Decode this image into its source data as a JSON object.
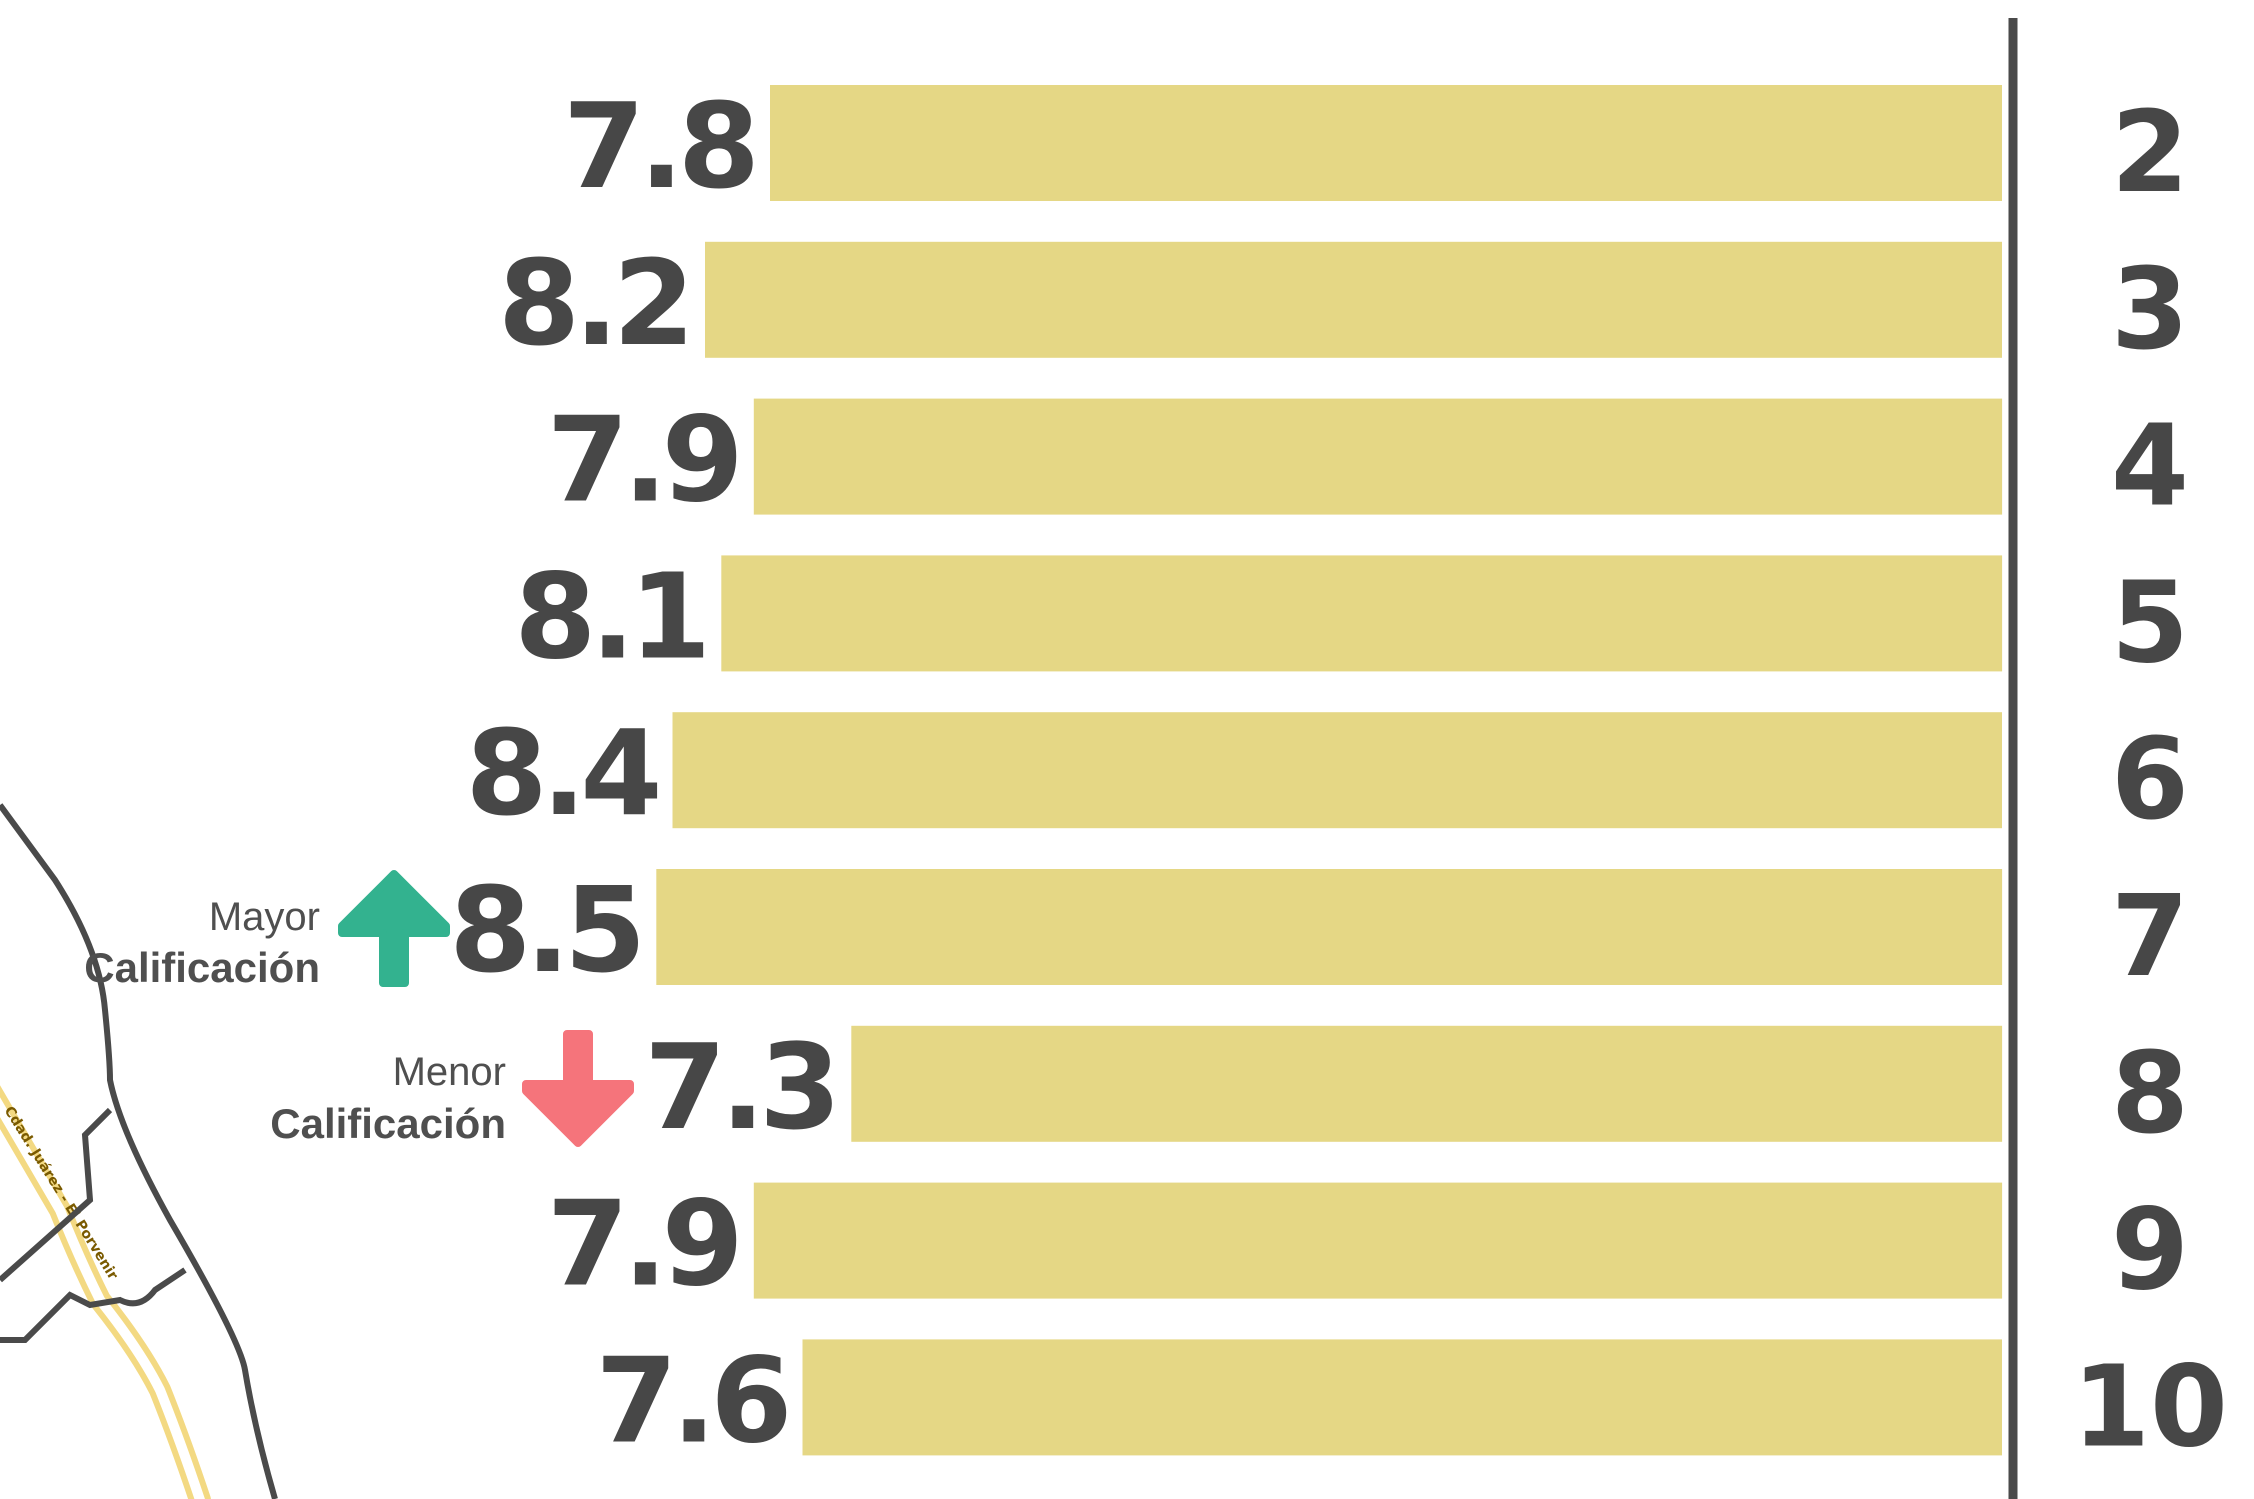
{
  "colors": {
    "bar": "#e5d785",
    "text": "#474747",
    "axis": "#4a4a4a",
    "up_arrow": "#33b28f",
    "down_arrow": "#f5747b",
    "map_line": "#4a4a4a",
    "road": "#f3d982"
  },
  "map": {
    "road_label": "Cdad. Juárez - El Porvenir"
  },
  "legend": {
    "max": {
      "top": "Mayor",
      "bottom": "Calificación",
      "icon": "arrow-up-icon"
    },
    "min": {
      "top": "Menor",
      "bottom": "Calificación",
      "icon": "arrow-down-icon"
    }
  },
  "chart_data": {
    "type": "bar",
    "orientation": "horizontal",
    "categories": [
      "2",
      "3",
      "4",
      "5",
      "6",
      "7",
      "8",
      "9",
      "10"
    ],
    "values": [
      7.8,
      8.2,
      7.9,
      8.1,
      8.4,
      8.5,
      7.3,
      7.9,
      7.6
    ],
    "value_labels": [
      "7.8",
      "8.2",
      "7.9",
      "8.1",
      "8.4",
      "8.5",
      "7.3",
      "7.9",
      "7.6"
    ],
    "max_category": "7",
    "min_category": "8",
    "title": "",
    "xlabel": "",
    "ylabel": "",
    "grid": false,
    "bar_direction": "right-to-left"
  }
}
